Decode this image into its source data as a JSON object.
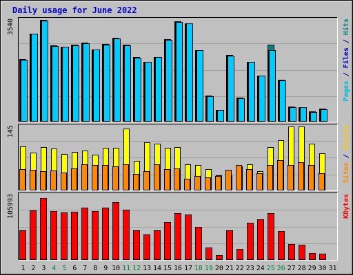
{
  "chart_data": {
    "type": "bar",
    "title": "Daily usage for June 2022",
    "categories": [
      "1",
      "2",
      "3",
      "4",
      "5",
      "6",
      "7",
      "8",
      "9",
      "10",
      "11",
      "12",
      "13",
      "14",
      "15",
      "16",
      "17",
      "18",
      "19",
      "20",
      "21",
      "22",
      "23",
      "24",
      "25",
      "26",
      "27",
      "28",
      "29",
      "30",
      "31"
    ],
    "weekend_days": [
      "4",
      "5",
      "11",
      "12",
      "18",
      "19",
      "25",
      "26"
    ],
    "panels": [
      {
        "id": "top",
        "max_label": "3540",
        "ylim": [
          0,
          3540
        ],
        "legend": [
          {
            "text": "Pages",
            "color": "#00bbdd"
          },
          {
            "text": " / ",
            "color": "#000080"
          },
          {
            "text": "Files",
            "color": "#0000cc"
          },
          {
            "text": " / ",
            "color": "#000080"
          },
          {
            "text": "Hits",
            "color": "#008080"
          }
        ],
        "series": [
          {
            "name": "Hits",
            "color": "#008080",
            "values": [
              2170,
              3050,
              3540,
              2650,
              2600,
              2680,
              2740,
              2510,
              2690,
              2920,
              2680,
              2230,
              2080,
              2250,
              2870,
              3480,
              3430,
              2480,
              890,
              390,
              2310,
              810,
              2080,
              1600,
              2680,
              1450,
              500,
              490,
              330,
              440,
              0
            ]
          },
          {
            "name": "Files",
            "color": "#0000cc",
            "values": [
              2140,
              3050,
              3510,
              2630,
              2590,
              2660,
              2720,
              2500,
              2670,
              2900,
              2660,
              2210,
              2060,
              2230,
              2850,
              3460,
              3410,
              2470,
              870,
              380,
              2290,
              800,
              2060,
              1580,
              2480,
              1420,
              480,
              470,
              310,
              420,
              0
            ]
          },
          {
            "name": "Pages",
            "color": "#00ccff",
            "values": [
              2140,
              3050,
              3510,
              2630,
              2590,
              2660,
              2720,
              2500,
              2670,
              2900,
              2660,
              2210,
              2060,
              2230,
              2850,
              3460,
              3410,
              2470,
              870,
              380,
              2290,
              800,
              2060,
              1580,
              2480,
              1420,
              480,
              470,
              310,
              420,
              0
            ]
          }
        ]
      },
      {
        "id": "middle",
        "max_label": "145",
        "ylim": [
          0,
          145
        ],
        "legend": [
          {
            "text": "Sites",
            "color": "#ff8800"
          },
          {
            "text": " / ",
            "color": "#000080"
          },
          {
            "text": "Visits",
            "color": "#ffcc00"
          }
        ],
        "series": [
          {
            "name": "Visits",
            "color": "#ffff00",
            "values": [
              100,
              85,
              98,
              95,
              82,
              87,
              90,
              80,
              96,
              96,
              140,
              66,
              108,
              105,
              96,
              98,
              59,
              57,
              47,
              33,
              33,
              53,
              58,
              43,
              97,
              114,
              145,
              145,
              106,
              84,
              0
            ]
          },
          {
            "name": "Sites",
            "color": "#ff8800",
            "values": [
              48,
              45,
              43,
              44,
              40,
              49,
              58,
              57,
              57,
              53,
              58,
              36,
              43,
              58,
              47,
              49,
              26,
              31,
              29,
              31,
              45,
              56,
              48,
              38,
              57,
              67,
              57,
              63,
              56,
              38,
              0
            ]
          }
        ]
      },
      {
        "id": "bottom",
        "max_label": "105993",
        "ylim": [
          0,
          105993
        ],
        "legend": [
          {
            "text": "KBytes",
            "color": "#ff0000"
          }
        ],
        "series": [
          {
            "name": "KBytes",
            "color": "#ff0000",
            "values": [
              48000,
              81000,
              102000,
              80000,
              77000,
              79000,
              85000,
              80000,
              86000,
              95000,
              82000,
              48000,
              41000,
              48000,
              62000,
              76000,
              74000,
              53000,
              19000,
              7000,
              48000,
              17000,
              60000,
              66000,
              76000,
              47000,
              25000,
              24000,
              10000,
              9000,
              0
            ]
          }
        ]
      }
    ]
  }
}
